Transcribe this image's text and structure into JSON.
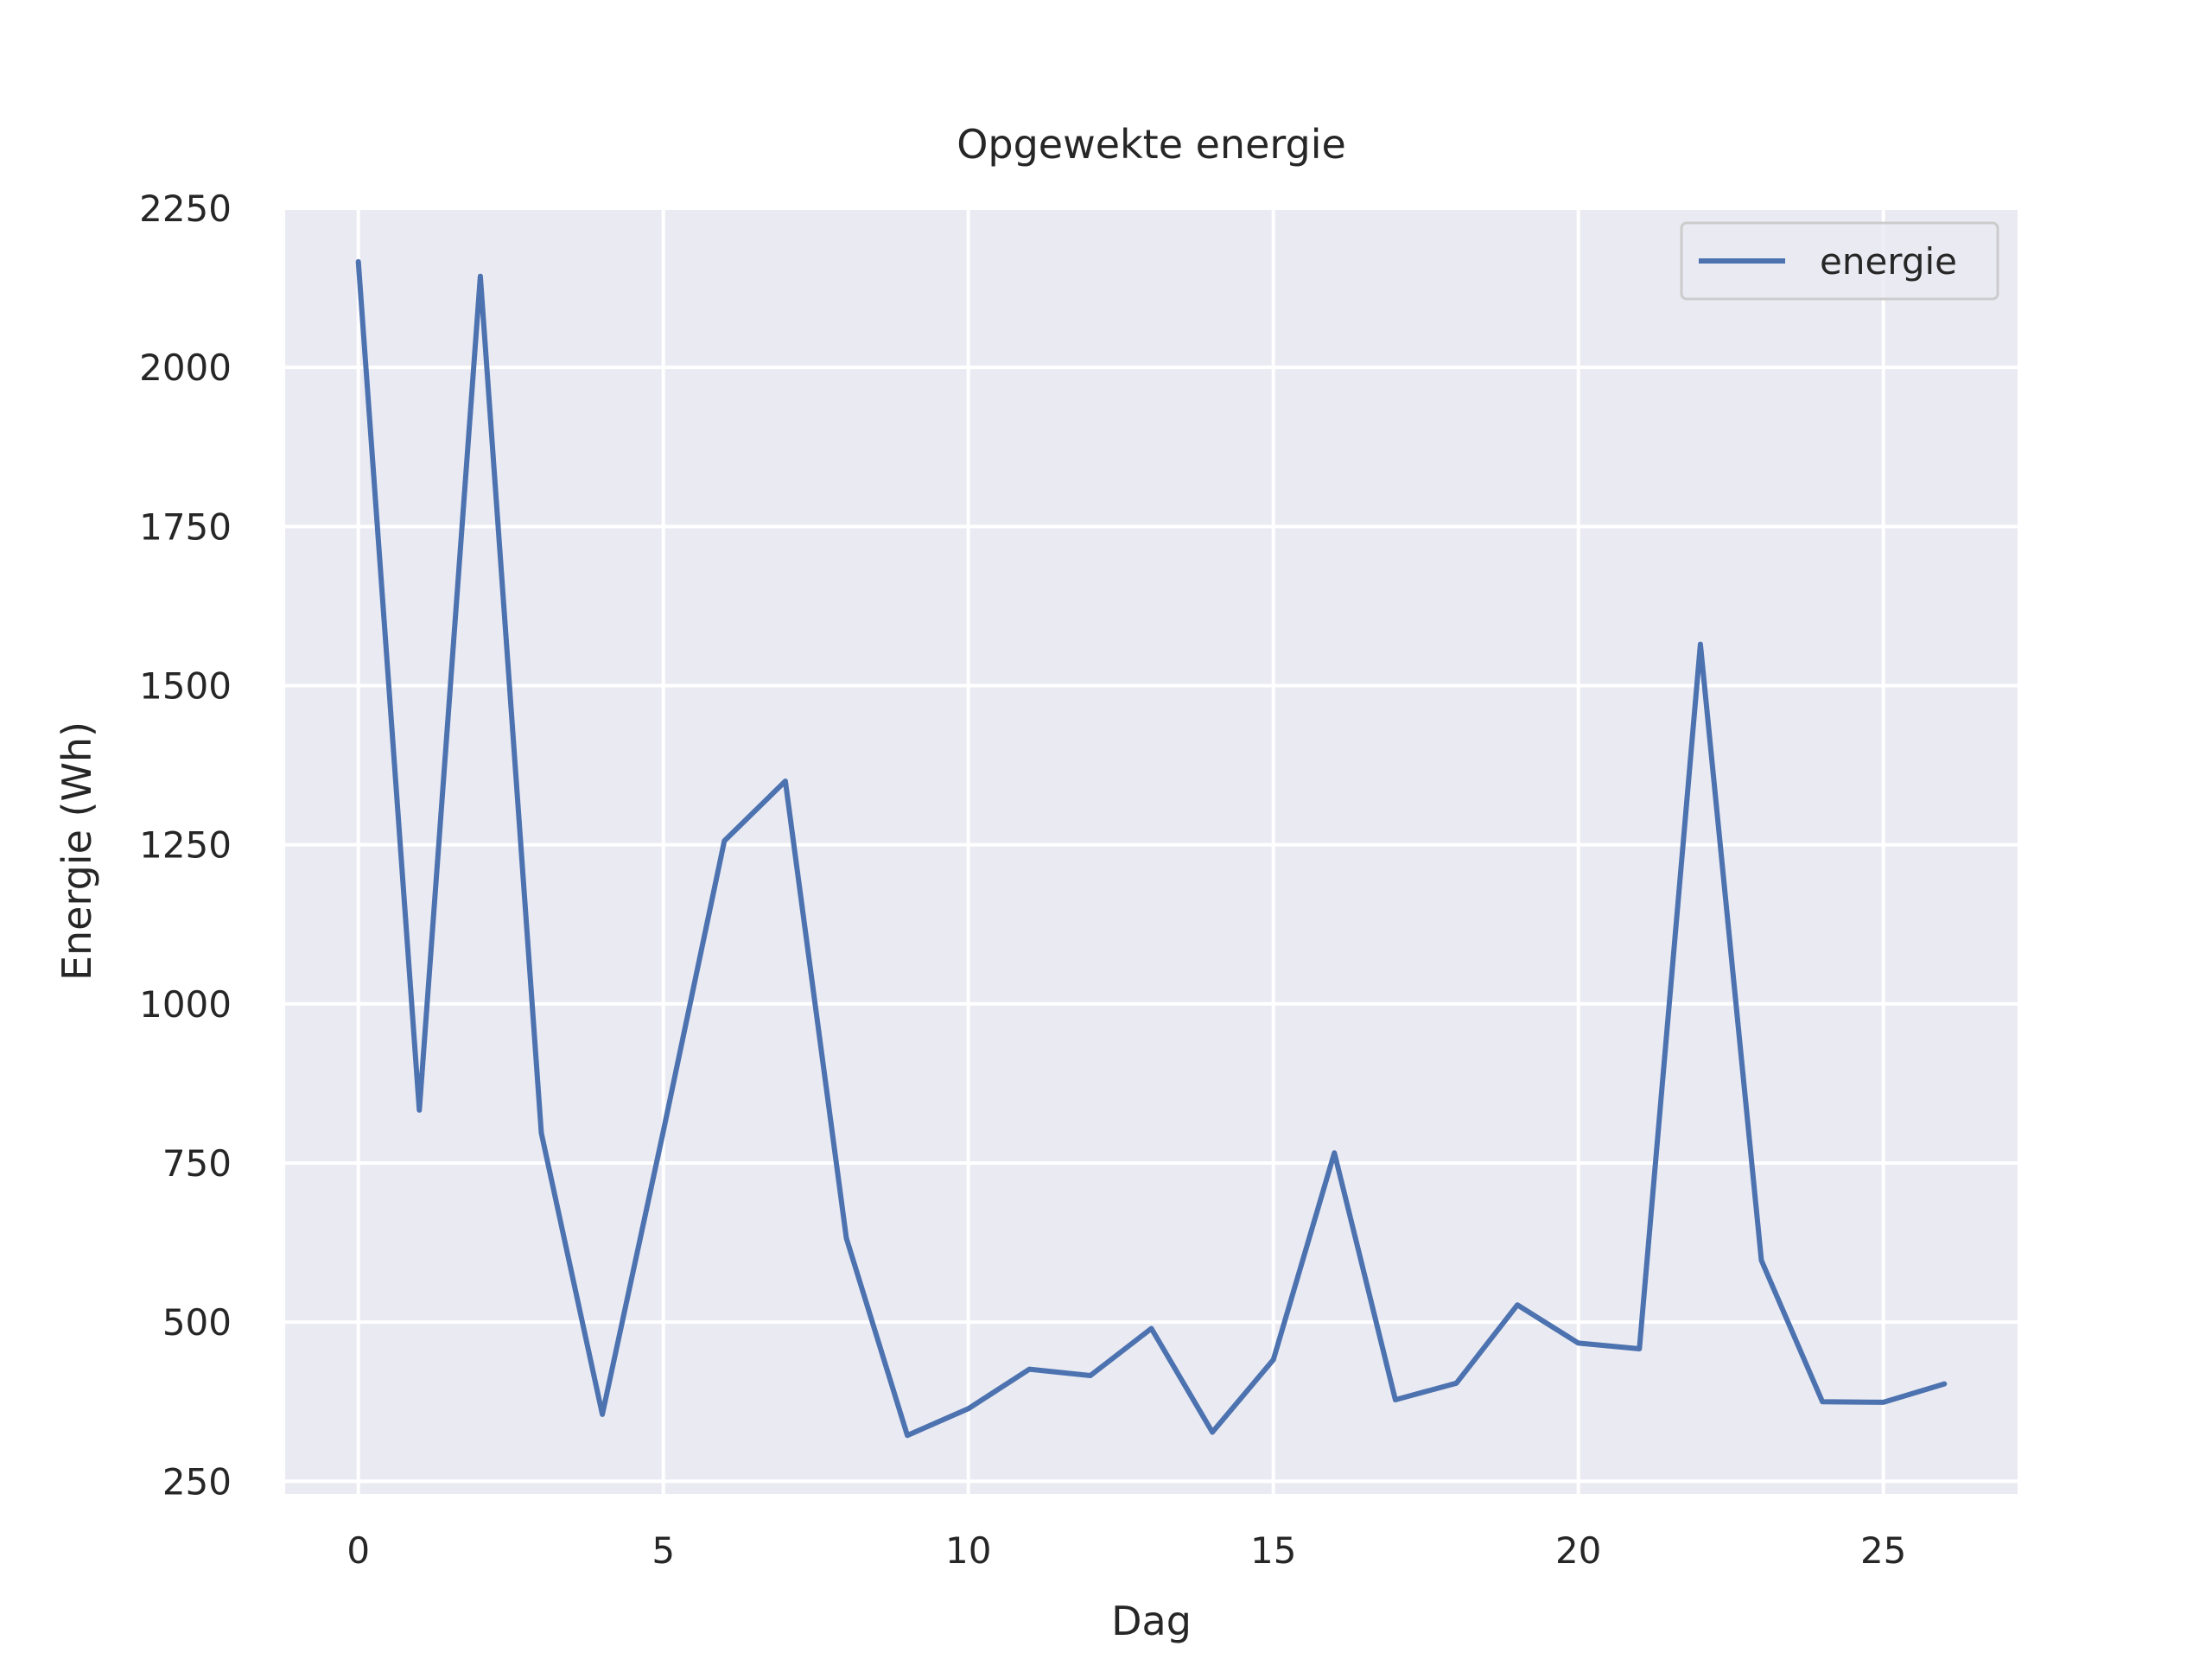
{
  "chart_data": {
    "type": "line",
    "title": "Opgewekte energie",
    "xlabel": "Dag",
    "ylabel": "Energie (Wh)",
    "xlim": [
      -1.2,
      27.2
    ],
    "ylim": [
      230,
      2250
    ],
    "x_ticks": [
      0,
      5,
      10,
      15,
      20,
      25
    ],
    "y_ticks": [
      250,
      500,
      750,
      1000,
      1250,
      1500,
      1750,
      2000,
      2250
    ],
    "grid": true,
    "legend": {
      "position": "top-right"
    },
    "colors": {
      "background": "#eaeaf2",
      "grid": "#ffffff",
      "line": "#4c72b0",
      "text": "#262626"
    },
    "series": [
      {
        "name": "energie",
        "x": [
          0,
          1,
          2,
          3,
          4,
          5,
          6,
          7,
          8,
          9,
          10,
          11,
          12,
          13,
          14,
          15,
          16,
          17,
          18,
          19,
          20,
          21,
          22,
          23,
          24,
          25,
          26
        ],
        "values": [
          2166,
          833,
          2143,
          797,
          355,
          800,
          1256,
          1350,
          632,
          322,
          364,
          426,
          416,
          490,
          327,
          441,
          766,
          378,
          404,
          527,
          467,
          458,
          1565,
          597,
          375,
          374,
          403
        ]
      }
    ]
  }
}
